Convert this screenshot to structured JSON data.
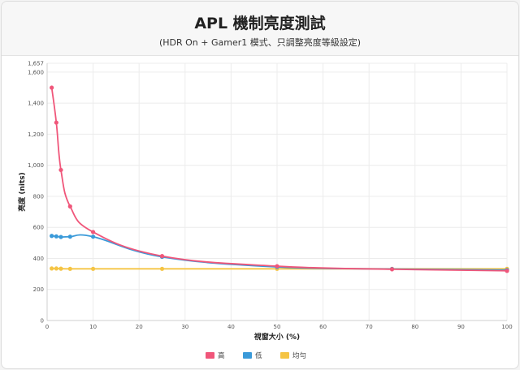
{
  "header": {
    "title": "APL 機制亮度測試",
    "subtitle": "(HDR On + Gamer1 模式、只調整亮度等級設定)"
  },
  "chart_data": {
    "type": "line",
    "title": "APL 機制亮度測試",
    "subtitle": "(HDR On + Gamer1 模式、只調整亮度等級設定)",
    "xlabel": "視窗大小 (%)",
    "ylabel": "亮度 (nits)",
    "xlim": [
      0,
      100
    ],
    "ylim": [
      0,
      1657
    ],
    "x_ticks": [
      0,
      10,
      20,
      30,
      40,
      50,
      60,
      70,
      80,
      90,
      100
    ],
    "y_ticks": [
      0,
      200,
      400,
      600,
      800,
      1000,
      1200,
      1400,
      1600,
      1657
    ],
    "y_tick_labels": [
      "0",
      "200",
      "400",
      "600",
      "800",
      "1,000",
      "1,200",
      "1,400",
      "1,600",
      "1,657"
    ],
    "grid": true,
    "legend_position": "bottom",
    "series": [
      {
        "name": "高",
        "color": "#f0567a",
        "points": [
          [
            1,
            1500
          ],
          [
            2,
            1275
          ],
          [
            3,
            970
          ],
          [
            5,
            735
          ],
          [
            10,
            570
          ],
          [
            25,
            415
          ],
          [
            50,
            350
          ],
          [
            75,
            330
          ],
          [
            100,
            320
          ]
        ]
      },
      {
        "name": "低",
        "color": "#3a9ad9",
        "points": [
          [
            1,
            545
          ],
          [
            2,
            542
          ],
          [
            3,
            538
          ],
          [
            5,
            540
          ],
          [
            10,
            540
          ],
          [
            25,
            410
          ],
          [
            50,
            345
          ],
          [
            75,
            332
          ],
          [
            100,
            325
          ]
        ]
      },
      {
        "name": "均勻",
        "color": "#f5c443",
        "points": [
          [
            1,
            335
          ],
          [
            2,
            335
          ],
          [
            3,
            334
          ],
          [
            5,
            333
          ],
          [
            10,
            333
          ],
          [
            25,
            333
          ],
          [
            50,
            333
          ],
          [
            75,
            333
          ],
          [
            100,
            333
          ]
        ]
      }
    ]
  }
}
